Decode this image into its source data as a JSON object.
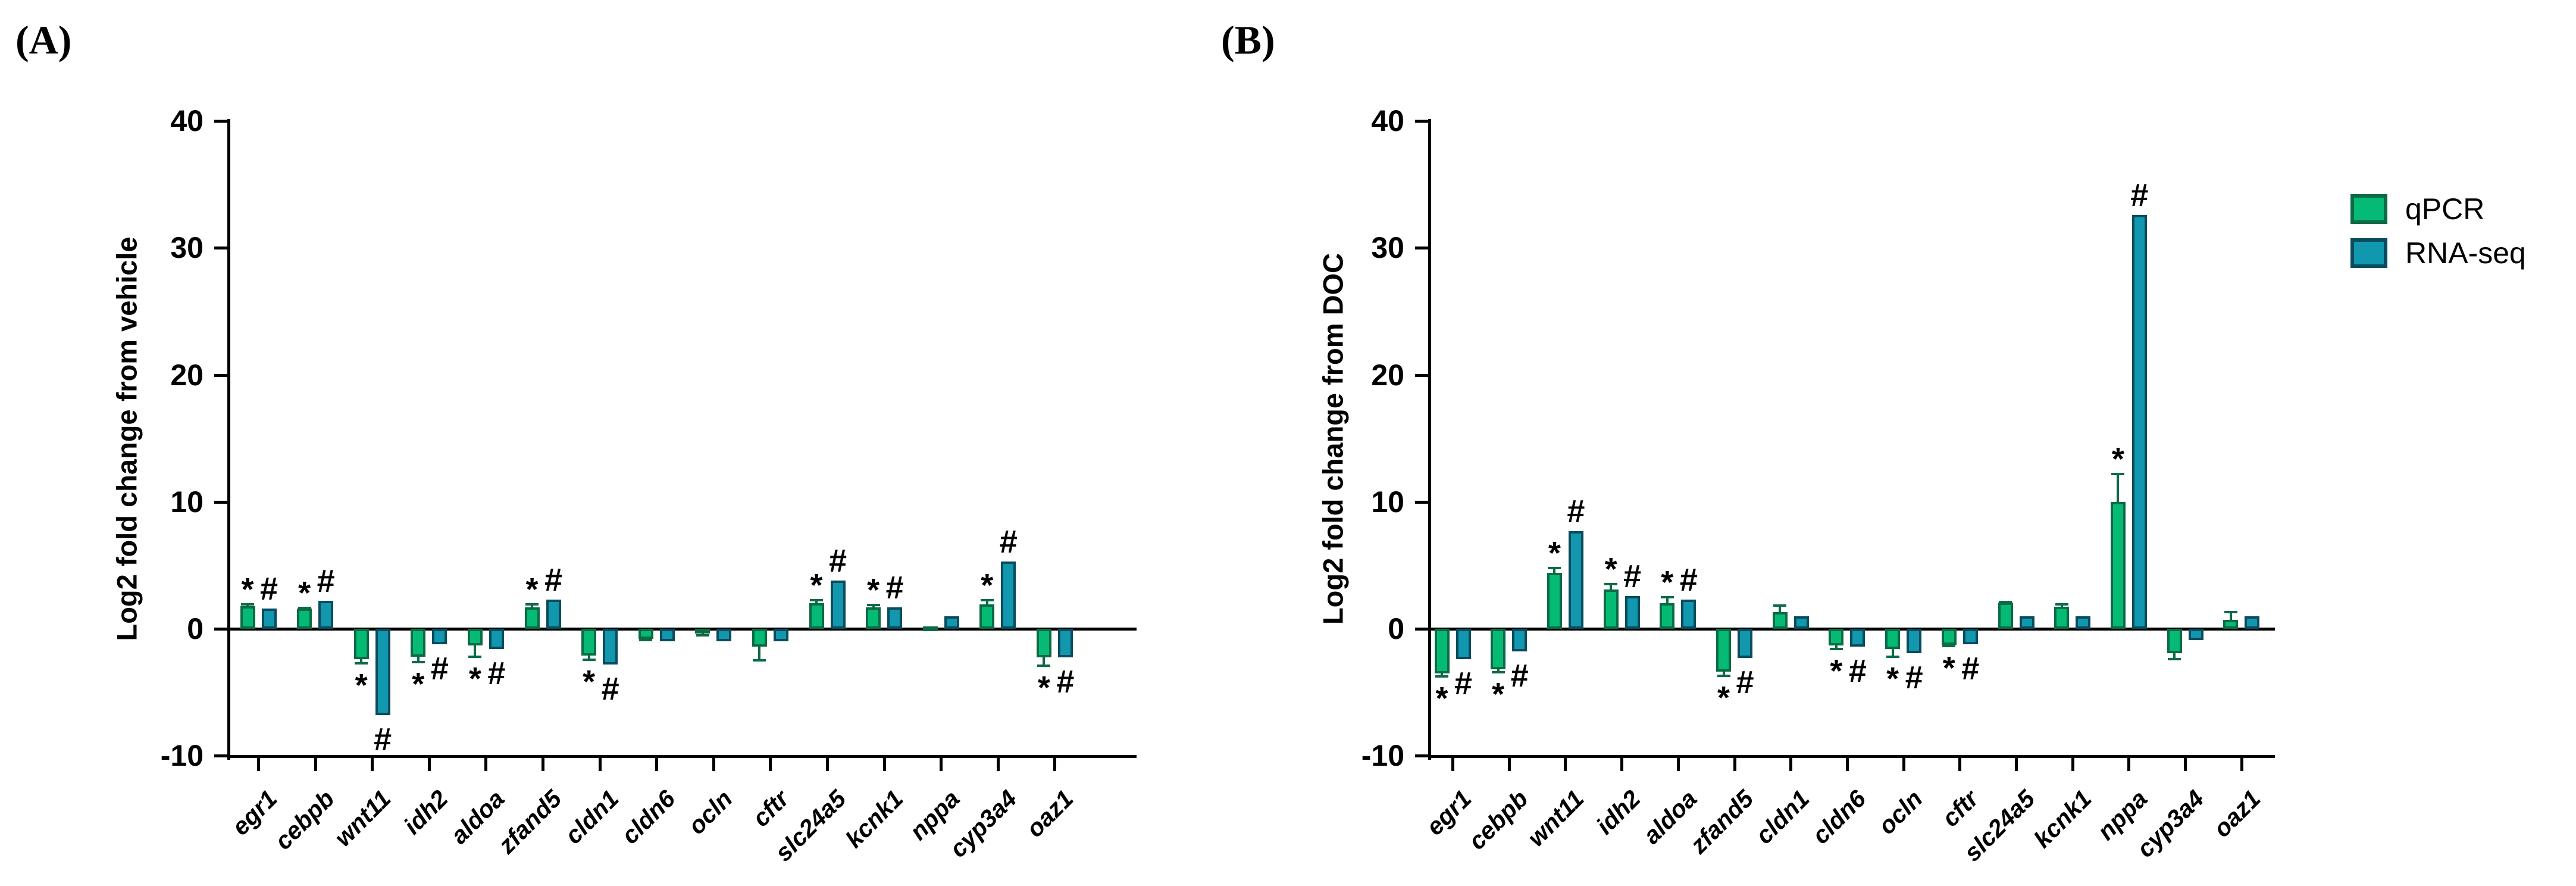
{
  "figure": {
    "panel_a_label": "(A)",
    "panel_b_label": "(B)",
    "legend": [
      {
        "label": "qPCR",
        "fill": "#05ba74",
        "border": "#0b6b45"
      },
      {
        "label": "RNA-seq",
        "fill": "#1197ae",
        "border": "#0a4c5e"
      }
    ]
  },
  "chart_data": [
    {
      "type": "bar",
      "panel": "A",
      "ylabel": "Log2 fold change from vehicle",
      "ylim": [
        -10,
        40
      ],
      "yticks": [
        "40",
        "30",
        "20",
        "10",
        "0",
        "-10"
      ],
      "grid": false,
      "legend_position": "outside-right",
      "categories": [
        "egr1",
        "cebpb",
        "wnt11",
        "idh2",
        "aldoa",
        "zfand5",
        "cldn1",
        "cldn6",
        "ocln",
        "cftr",
        "slc24a5",
        "kcnk1",
        "nppa",
        "cyp3a4",
        "oaz1"
      ],
      "series": [
        {
          "name": "qPCR",
          "values": [
            1.8,
            1.6,
            -2.4,
            -2.2,
            -1.3,
            1.7,
            -2.1,
            -0.8,
            -0.35,
            -1.4,
            2.0,
            1.7,
            0.2,
            1.9,
            -2.25
          ],
          "errors": [
            0.2,
            0.15,
            -0.4,
            -0.5,
            -1.0,
            0.3,
            -0.45,
            -0.2,
            -0.25,
            -1.2,
            0.35,
            0.25,
            null,
            0.45,
            -0.75
          ],
          "sig": [
            "*",
            "*",
            "*",
            "*",
            "*",
            "*",
            "*",
            null,
            null,
            null,
            "*",
            "*",
            null,
            "*",
            "*"
          ]
        },
        {
          "name": "RNA-seq",
          "values": [
            1.6,
            2.2,
            -6.8,
            -1.2,
            -1.6,
            2.3,
            -2.8,
            -1.0,
            -1.0,
            -1.0,
            3.8,
            1.7,
            1.0,
            5.3,
            -2.25
          ],
          "errors": [
            null,
            null,
            null,
            null,
            null,
            null,
            null,
            null,
            null,
            null,
            null,
            null,
            null,
            null,
            null
          ],
          "sig": [
            "#",
            "#",
            "#",
            "#",
            "#",
            "#",
            "#",
            null,
            null,
            null,
            "#",
            "#",
            null,
            "#",
            "#"
          ]
        }
      ]
    },
    {
      "type": "bar",
      "panel": "B",
      "ylabel": "Log2 fold change from DOC",
      "ylim": [
        -10,
        40
      ],
      "yticks": [
        "40",
        "30",
        "20",
        "10",
        "0",
        "-10"
      ],
      "grid": false,
      "legend_position": "outside-right",
      "categories": [
        "egr1",
        "cebpb",
        "wnt11",
        "idh2",
        "aldoa",
        "zfand5",
        "cldn1",
        "cldn6",
        "ocln",
        "cftr",
        "slc24a5",
        "kcnk1",
        "nppa",
        "cyp3a4",
        "oaz1"
      ],
      "series": [
        {
          "name": "qPCR",
          "values": [
            -3.5,
            -3.2,
            4.4,
            3.1,
            2.0,
            -3.4,
            1.3,
            -1.3,
            -1.6,
            -1.25,
            2.05,
            1.75,
            10.0,
            -1.9,
            0.7
          ],
          "errors": [
            -0.35,
            -0.3,
            0.5,
            0.5,
            0.6,
            -0.4,
            0.6,
            -0.4,
            -0.7,
            -0.2,
            0.15,
            0.25,
            2.3,
            -0.6,
            0.7
          ],
          "sig": [
            "*",
            "*",
            "*",
            "*",
            "*",
            "*",
            null,
            "*",
            "*",
            "*",
            null,
            null,
            "*",
            null,
            null
          ]
        },
        {
          "name": "RNA-seq",
          "values": [
            -2.4,
            -1.8,
            7.7,
            2.6,
            2.3,
            -2.3,
            1.0,
            -1.4,
            -1.9,
            -1.2,
            1.0,
            1.0,
            32.6,
            -0.9,
            1.0
          ],
          "errors": [
            null,
            null,
            null,
            null,
            null,
            null,
            null,
            null,
            null,
            null,
            null,
            null,
            null,
            null,
            null
          ],
          "sig": [
            "#",
            "#",
            "#",
            "#",
            "#",
            "#",
            null,
            "#",
            "#",
            "#",
            null,
            null,
            "#",
            null,
            null
          ]
        }
      ]
    }
  ]
}
